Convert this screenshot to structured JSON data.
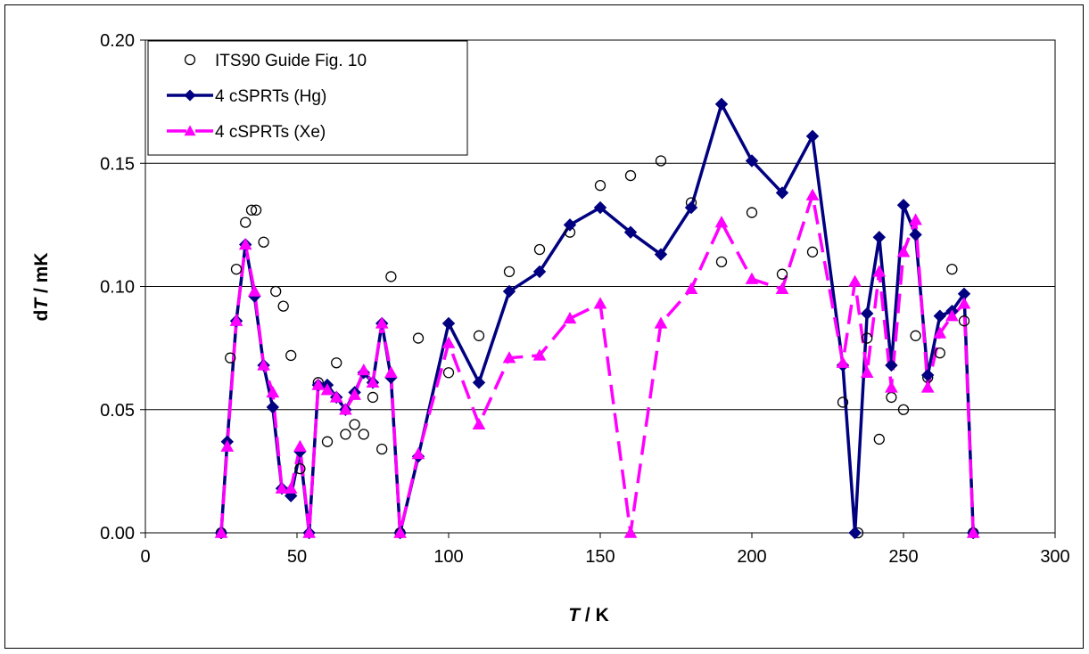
{
  "chart_data": {
    "type": "line",
    "xlabel": {
      "italic": "T",
      "rest": " / K"
    },
    "ylabel": {
      "pre": "d",
      "italic": "T",
      "rest": " / mK"
    },
    "xlim": [
      0,
      300
    ],
    "ylim": [
      0,
      0.2
    ],
    "x_ticks": [
      "0",
      "50",
      "100",
      "150",
      "200",
      "250",
      "300"
    ],
    "y_ticks": [
      "0.00",
      "0.05",
      "0.10",
      "0.15",
      "0.20"
    ],
    "grid": "horizontal",
    "legend_position": "top-left",
    "series": [
      {
        "name": "ITS90 Guide Fig. 10",
        "style": "open-circle",
        "color": "#000000",
        "x": [
          25,
          28,
          30,
          33,
          35,
          36.5,
          39,
          43,
          45.5,
          48,
          51,
          57,
          60,
          63,
          66,
          69,
          72,
          75,
          78,
          81,
          84,
          90,
          100,
          110,
          120,
          130,
          140,
          150,
          160,
          170,
          180,
          190,
          200,
          210,
          220,
          230,
          235,
          238,
          242,
          246,
          250,
          254,
          258,
          262,
          266,
          270,
          273
        ],
        "y": [
          0.0,
          0.071,
          0.107,
          0.126,
          0.131,
          0.131,
          0.118,
          0.098,
          0.092,
          0.072,
          0.026,
          0.061,
          0.037,
          0.069,
          0.04,
          0.044,
          0.04,
          0.055,
          0.034,
          0.104,
          0.0,
          0.079,
          0.065,
          0.08,
          0.106,
          0.115,
          0.122,
          0.141,
          0.145,
          0.151,
          0.134,
          0.11,
          0.13,
          0.105,
          0.114,
          0.053,
          0.0,
          0.079,
          0.038,
          0.055,
          0.05,
          0.08,
          0.063,
          0.073,
          0.107,
          0.086,
          0.0
        ]
      },
      {
        "name": "4 cSPRTs (Hg)",
        "style": "diamond-solid",
        "color": "#000080",
        "x": [
          25,
          27,
          30,
          33,
          36,
          39,
          42,
          45,
          48,
          51,
          54,
          57,
          60,
          63,
          66,
          69,
          72,
          75,
          78,
          81,
          84,
          90,
          100,
          110,
          120,
          130,
          140,
          150,
          160,
          170,
          180,
          190,
          200,
          210,
          220,
          230,
          234,
          238,
          242,
          246,
          250,
          254,
          258,
          262,
          266,
          270,
          273
        ],
        "y": [
          0.0,
          0.037,
          0.086,
          0.117,
          0.096,
          0.068,
          0.051,
          0.018,
          0.015,
          0.033,
          0.0,
          0.06,
          0.06,
          0.055,
          0.05,
          0.057,
          0.065,
          0.061,
          0.085,
          0.063,
          0.0,
          0.031,
          0.085,
          0.061,
          0.098,
          0.106,
          0.125,
          0.132,
          0.122,
          0.113,
          0.132,
          0.174,
          0.151,
          0.138,
          0.161,
          0.068,
          0.0,
          0.089,
          0.12,
          0.068,
          0.133,
          0.121,
          0.064,
          0.088,
          0.09,
          0.097,
          0.0
        ]
      },
      {
        "name": "4 cSPRTs (Xe)",
        "style": "triangle-dashed",
        "color": "#ff00ff",
        "x": [
          25,
          27,
          30,
          33,
          36,
          39,
          42,
          45,
          48,
          51,
          54,
          57,
          60,
          63,
          66,
          69,
          72,
          75,
          78,
          81,
          84,
          90,
          100,
          110,
          120,
          130,
          140,
          150,
          160,
          170,
          180,
          190,
          200,
          210,
          220,
          230,
          234,
          238,
          242,
          246,
          250,
          254,
          258,
          262,
          266,
          270,
          273
        ],
        "y": [
          0.0,
          0.035,
          0.086,
          0.117,
          0.098,
          0.068,
          0.057,
          0.018,
          0.018,
          0.035,
          0.0,
          0.06,
          0.058,
          0.055,
          0.05,
          0.056,
          0.066,
          0.061,
          0.085,
          0.065,
          0.0,
          0.032,
          0.077,
          0.044,
          0.071,
          0.072,
          0.087,
          0.093,
          0.0,
          0.085,
          0.099,
          0.126,
          0.103,
          0.099,
          0.137,
          0.069,
          0.102,
          0.065,
          0.106,
          0.059,
          0.114,
          0.127,
          0.059,
          0.081,
          0.088,
          0.093,
          0.0
        ]
      }
    ]
  }
}
